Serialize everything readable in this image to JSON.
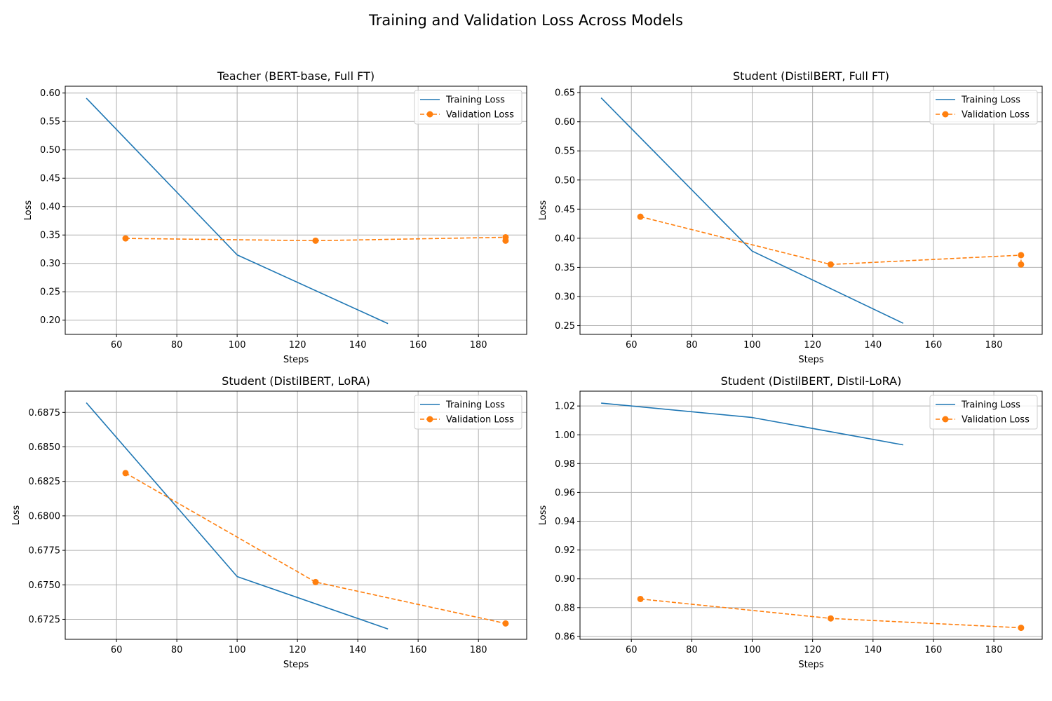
{
  "figure": {
    "title": "Training and Validation Loss Across Models"
  },
  "colors": {
    "training": "#1f77b4",
    "validation": "#ff7f0e",
    "grid": "#b0b0b0",
    "axes": "#000000"
  },
  "chart_data": [
    {
      "type": "line",
      "title": "Teacher (BERT-base, Full FT)",
      "xlabel": "Steps",
      "ylabel": "Loss",
      "xlim": [
        43,
        196
      ],
      "ylim": [
        0.175,
        0.612
      ],
      "xticks": [
        60,
        80,
        100,
        120,
        140,
        160,
        180
      ],
      "yticks": [
        0.2,
        0.25,
        0.3,
        0.35,
        0.4,
        0.45,
        0.5,
        0.55,
        0.6
      ],
      "ytick_labels": [
        "0.20",
        "0.25",
        "0.30",
        "0.35",
        "0.40",
        "0.45",
        "0.50",
        "0.55",
        "0.60"
      ],
      "grid": true,
      "legend": "upper right",
      "series": [
        {
          "name": "Training Loss",
          "style": "solid",
          "markers": false,
          "x": [
            50,
            100,
            150
          ],
          "y": [
            0.591,
            0.315,
            0.194
          ]
        },
        {
          "name": "Validation Loss",
          "style": "dashed",
          "markers": true,
          "x": [
            63,
            126,
            189,
            189
          ],
          "y": [
            0.344,
            0.34,
            0.346,
            0.34
          ]
        }
      ]
    },
    {
      "type": "line",
      "title": "Student (DistilBERT, Full FT)",
      "xlabel": "Steps",
      "ylabel": "Loss",
      "xlim": [
        43,
        196
      ],
      "ylim": [
        0.235,
        0.661
      ],
      "xticks": [
        60,
        80,
        100,
        120,
        140,
        160,
        180
      ],
      "yticks": [
        0.25,
        0.3,
        0.35,
        0.4,
        0.45,
        0.5,
        0.55,
        0.6,
        0.65
      ],
      "ytick_labels": [
        "0.25",
        "0.30",
        "0.35",
        "0.40",
        "0.45",
        "0.50",
        "0.55",
        "0.60",
        "0.65"
      ],
      "grid": true,
      "legend": "upper right",
      "series": [
        {
          "name": "Training Loss",
          "style": "solid",
          "markers": false,
          "x": [
            50,
            100,
            150
          ],
          "y": [
            0.641,
            0.378,
            0.254
          ]
        },
        {
          "name": "Validation Loss",
          "style": "dashed",
          "markers": true,
          "x": [
            63,
            126,
            189,
            189
          ],
          "y": [
            0.437,
            0.355,
            0.371,
            0.355
          ]
        }
      ]
    },
    {
      "type": "line",
      "title": "Student (DistilBERT, LoRA)",
      "xlabel": "Steps",
      "ylabel": "Loss",
      "xlim": [
        43,
        196
      ],
      "ylim": [
        0.67105,
        0.68904
      ],
      "xticks": [
        60,
        80,
        100,
        120,
        140,
        160,
        180
      ],
      "yticks": [
        0.6725,
        0.675,
        0.6775,
        0.68,
        0.6825,
        0.685,
        0.6875
      ],
      "ytick_labels": [
        "0.6725",
        "0.6750",
        "0.6775",
        "0.6800",
        "0.6825",
        "0.6850",
        "0.6875"
      ],
      "grid": true,
      "legend": "upper right",
      "series": [
        {
          "name": "Training Loss",
          "style": "solid",
          "markers": false,
          "x": [
            50,
            100,
            150
          ],
          "y": [
            0.6882,
            0.6756,
            0.6718
          ]
        },
        {
          "name": "Validation Loss",
          "style": "dashed",
          "markers": true,
          "x": [
            63,
            126,
            189
          ],
          "y": [
            0.6831,
            0.6752,
            0.6722
          ]
        }
      ]
    },
    {
      "type": "line",
      "title": "Student (DistilBERT, Distil-LoRA)",
      "xlabel": "Steps",
      "ylabel": "Loss",
      "xlim": [
        43,
        196
      ],
      "ylim": [
        0.858,
        1.0303
      ],
      "xticks": [
        60,
        80,
        100,
        120,
        140,
        160,
        180
      ],
      "yticks": [
        0.86,
        0.88,
        0.9,
        0.92,
        0.94,
        0.96,
        0.98,
        1.0,
        1.02
      ],
      "ytick_labels": [
        "0.86",
        "0.88",
        "0.90",
        "0.92",
        "0.94",
        "0.96",
        "0.98",
        "1.00",
        "1.02"
      ],
      "grid": true,
      "legend": "upper right",
      "series": [
        {
          "name": "Training Loss",
          "style": "solid",
          "markers": false,
          "x": [
            50,
            100,
            150
          ],
          "y": [
            1.022,
            1.012,
            0.993
          ]
        },
        {
          "name": "Validation Loss",
          "style": "dashed",
          "markers": true,
          "x": [
            63,
            126,
            189
          ],
          "y": [
            0.886,
            0.8725,
            0.866
          ]
        }
      ]
    }
  ]
}
